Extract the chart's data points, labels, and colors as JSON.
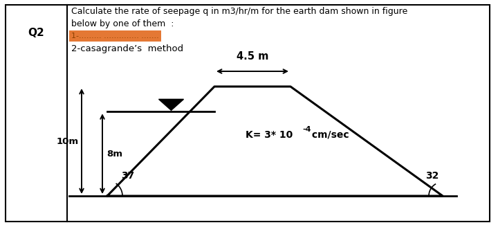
{
  "title_q": "Q2",
  "title_text1": "Calculate the rate of seepage q in m3/hr/m for the earth dam shown in figure",
  "title_text2": "below by one of them  :",
  "method_text": "2-casagrande’s  method",
  "top_width_label": "4.5 m",
  "height_label_total": "10m",
  "height_label_inner": "8m",
  "k_label": "K= 3* 10",
  "k_exp": "-4",
  "k_unit": " cm/sec",
  "angle_left": "37",
  "angle_right": "32",
  "bg_color": "#ffffff",
  "border_color": "#000000",
  "dam_color": "#000000",
  "highlight_color": "#e06010"
}
